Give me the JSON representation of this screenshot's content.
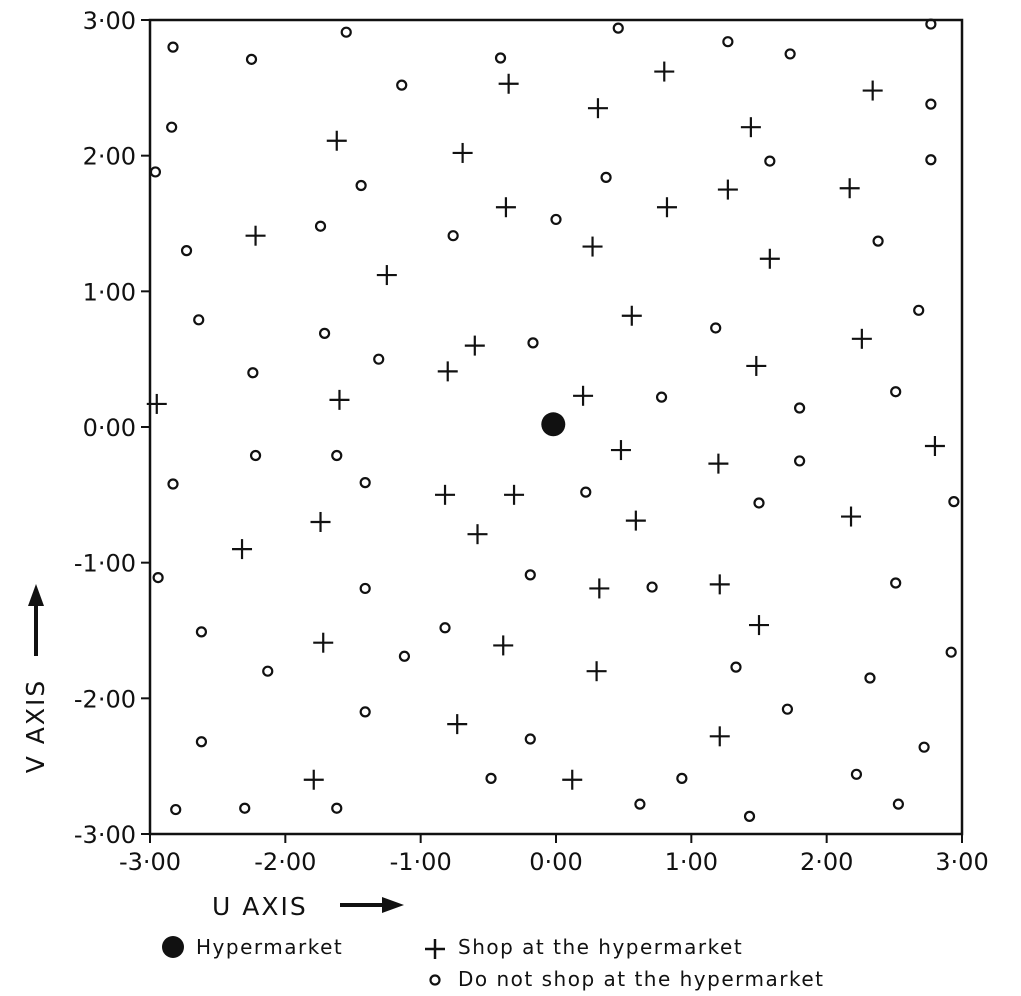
{
  "chart_data": {
    "type": "scatter",
    "title": "",
    "xlabel": "U AXIS",
    "ylabel": "V AXIS",
    "xlim": [
      -3,
      3
    ],
    "ylim": [
      -3,
      3
    ],
    "grid": false,
    "legend_position": "bottom",
    "x_ticks": [
      {
        "value": -3,
        "label": "-3·00"
      },
      {
        "value": -2,
        "label": "-2·00"
      },
      {
        "value": -1,
        "label": "-1·00"
      },
      {
        "value": 0,
        "label": "0·00"
      },
      {
        "value": 1,
        "label": "1·00"
      },
      {
        "value": 2,
        "label": "2·00"
      },
      {
        "value": 3,
        "label": "3·00"
      }
    ],
    "y_ticks": [
      {
        "value": 3,
        "label": "3·00"
      },
      {
        "value": 2,
        "label": "2·00"
      },
      {
        "value": 1,
        "label": "1·00"
      },
      {
        "value": 0,
        "label": "0·00"
      },
      {
        "value": -1,
        "label": "-1·00"
      },
      {
        "value": -2,
        "label": "-2·00"
      },
      {
        "value": -3,
        "label": "-3·00"
      }
    ],
    "series": [
      {
        "name": "Hypermarket",
        "marker": "filled-circle",
        "points": [
          [
            -0.02,
            0.02
          ]
        ]
      },
      {
        "name": "Shop at the hypermarket",
        "marker": "plus",
        "points": [
          [
            -2.95,
            0.17
          ],
          [
            -2.22,
            1.41
          ],
          [
            -1.62,
            2.11
          ],
          [
            -1.25,
            1.12
          ],
          [
            -0.69,
            2.02
          ],
          [
            -0.35,
            2.53
          ],
          [
            -0.37,
            1.62
          ],
          [
            0.27,
            1.33
          ],
          [
            0.31,
            2.35
          ],
          [
            0.8,
            2.62
          ],
          [
            0.82,
            1.62
          ],
          [
            1.27,
            1.75
          ],
          [
            1.44,
            2.21
          ],
          [
            1.58,
            1.24
          ],
          [
            2.17,
            1.76
          ],
          [
            2.34,
            2.48
          ],
          [
            2.26,
            0.65
          ],
          [
            1.48,
            0.45
          ],
          [
            0.56,
            0.82
          ],
          [
            -0.6,
            0.6
          ],
          [
            -0.8,
            0.41
          ],
          [
            -1.6,
            0.2
          ],
          [
            0.2,
            0.23
          ],
          [
            0.48,
            -0.17
          ],
          [
            1.2,
            -0.27
          ],
          [
            2.8,
            -0.14
          ],
          [
            -0.82,
            -0.5
          ],
          [
            -0.31,
            -0.5
          ],
          [
            -1.74,
            -0.7
          ],
          [
            -0.58,
            -0.79
          ],
          [
            0.59,
            -0.69
          ],
          [
            2.18,
            -0.66
          ],
          [
            -2.32,
            -0.9
          ],
          [
            0.32,
            -1.19
          ],
          [
            1.21,
            -1.16
          ],
          [
            -1.72,
            -1.59
          ],
          [
            -0.39,
            -1.61
          ],
          [
            1.5,
            -1.46
          ],
          [
            0.3,
            -1.8
          ],
          [
            -0.73,
            -2.19
          ],
          [
            1.21,
            -2.28
          ],
          [
            -1.79,
            -2.6
          ],
          [
            0.12,
            -2.6
          ]
        ]
      },
      {
        "name": "Do not shop at the hypermarket",
        "marker": "open-circle",
        "points": [
          [
            -2.83,
            2.8
          ],
          [
            -2.25,
            2.71
          ],
          [
            -1.55,
            2.91
          ],
          [
            -1.14,
            2.52
          ],
          [
            -0.41,
            2.72
          ],
          [
            0.46,
            2.94
          ],
          [
            1.27,
            2.84
          ],
          [
            1.73,
            2.75
          ],
          [
            2.77,
            2.97
          ],
          [
            -2.84,
            2.21
          ],
          [
            2.77,
            2.38
          ],
          [
            -2.96,
            1.88
          ],
          [
            -1.44,
            1.78
          ],
          [
            1.58,
            1.96
          ],
          [
            2.77,
            1.97
          ],
          [
            0.37,
            1.84
          ],
          [
            -1.74,
            1.48
          ],
          [
            -0.76,
            1.41
          ],
          [
            0.0,
            1.53
          ],
          [
            2.38,
            1.37
          ],
          [
            -2.73,
            1.3
          ],
          [
            -2.64,
            0.79
          ],
          [
            -1.71,
            0.69
          ],
          [
            -1.31,
            0.5
          ],
          [
            -0.17,
            0.62
          ],
          [
            1.18,
            0.73
          ],
          [
            2.68,
            0.86
          ],
          [
            -2.24,
            0.4
          ],
          [
            0.78,
            0.22
          ],
          [
            1.8,
            0.14
          ],
          [
            2.51,
            0.26
          ],
          [
            -2.22,
            -0.21
          ],
          [
            -1.62,
            -0.21
          ],
          [
            -1.41,
            -0.41
          ],
          [
            -2.83,
            -0.42
          ],
          [
            0.22,
            -0.48
          ],
          [
            1.5,
            -0.56
          ],
          [
            1.8,
            -0.25
          ],
          [
            2.94,
            -0.55
          ],
          [
            -2.94,
            -1.11
          ],
          [
            -1.41,
            -1.19
          ],
          [
            -0.19,
            -1.09
          ],
          [
            0.71,
            -1.18
          ],
          [
            2.51,
            -1.15
          ],
          [
            -2.62,
            -1.51
          ],
          [
            -2.13,
            -1.8
          ],
          [
            -0.82,
            -1.48
          ],
          [
            -1.12,
            -1.69
          ],
          [
            1.33,
            -1.77
          ],
          [
            2.32,
            -1.85
          ],
          [
            2.92,
            -1.66
          ],
          [
            -1.41,
            -2.1
          ],
          [
            -0.19,
            -2.3
          ],
          [
            1.71,
            -2.08
          ],
          [
            2.72,
            -2.36
          ],
          [
            -2.62,
            -2.32
          ],
          [
            -2.81,
            -2.82
          ],
          [
            -2.3,
            -2.81
          ],
          [
            -1.62,
            -2.81
          ],
          [
            -0.48,
            -2.59
          ],
          [
            0.62,
            -2.78
          ],
          [
            0.93,
            -2.59
          ],
          [
            1.43,
            -2.87
          ],
          [
            2.22,
            -2.56
          ],
          [
            2.53,
            -2.78
          ]
        ]
      }
    ]
  },
  "legend": [
    {
      "label": "Hypermarket",
      "marker": "filled-circle"
    },
    {
      "label": "Shop at the hypermarket",
      "marker": "plus"
    },
    {
      "label": "Do not shop at the hypermarket",
      "marker": "open-circle"
    }
  ]
}
